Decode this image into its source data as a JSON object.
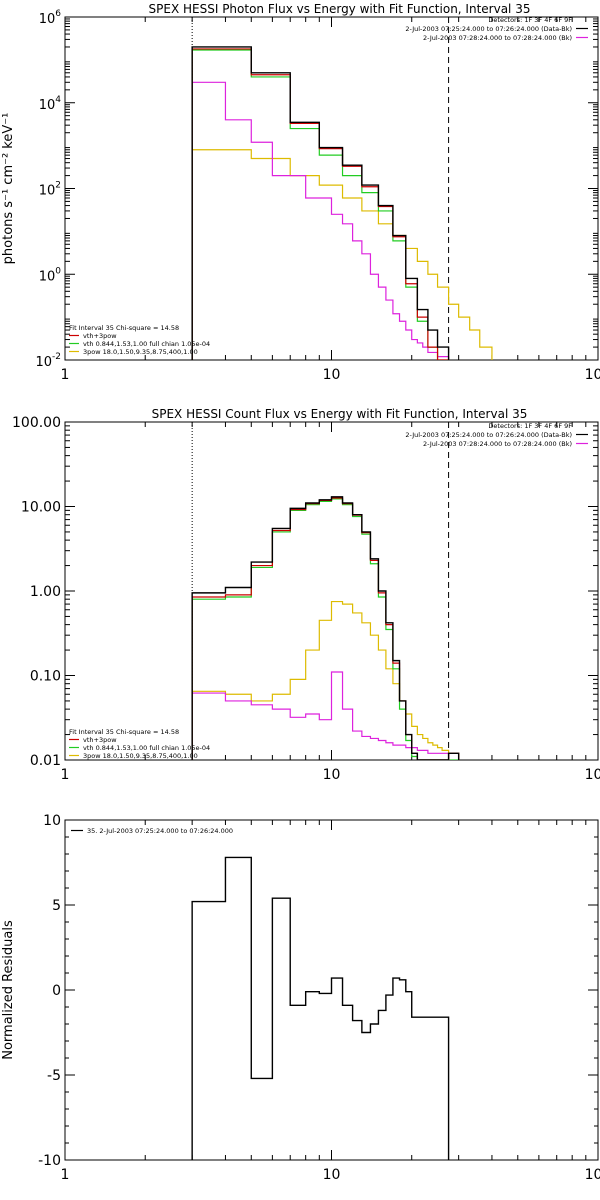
{
  "chart_data": [
    {
      "type": "line",
      "title": "SPEX HESSI Photon Flux vs Energy with Fit Function, Interval 35",
      "ylabel": "photons s⁻¹ cm⁻² keV⁻¹",
      "xlabel": "",
      "xscale": "log",
      "yscale": "log",
      "xlim": [
        1,
        100
      ],
      "ylim": [
        0.01,
        1000000
      ],
      "x_ticks": [
        {
          "v": 1,
          "label": "1"
        },
        {
          "v": 10,
          "label": "10"
        },
        {
          "v": 100,
          "label": "100"
        }
      ],
      "y_ticks": [
        {
          "v": 0.01,
          "base": "10",
          "exp": "-2"
        },
        {
          "v": 1,
          "base": "10",
          "exp": "0"
        },
        {
          "v": 100,
          "base": "10",
          "exp": "2"
        },
        {
          "v": 10000,
          "base": "10",
          "exp": "4"
        },
        {
          "v": 1000000,
          "base": "10",
          "exp": "6"
        }
      ],
      "legend_top": [
        "Detectors: 1F 3F 4F 6F 9F",
        "2-Jul-2003 07:25:24.000 to 07:26:24.000 (Data-Bk)",
        "2-Jul-2003 07:28:24.000 to 07:28:24.000 (Bk)"
      ],
      "legend_bottom": [
        "Fit Interval 35   Chi-square = 14.58",
        "vth+3pow",
        "vth 0.844,1.53,1.00  full chian 1.05e-04",
        "3pow 18.0,1.50,9.35,8.75,400,1.00"
      ],
      "colors": {
        "data": "#000000",
        "model": "#cc0000",
        "vth": "#22cc22",
        "pow": "#ddbb00",
        "bk": "#dd22dd"
      },
      "fit_range": [
        3,
        27.5
      ],
      "energy_edges": [
        3,
        4,
        5,
        6,
        7,
        8,
        9,
        10,
        11,
        12,
        13,
        14,
        15,
        16,
        17,
        18,
        19,
        20,
        21,
        22,
        23,
        24,
        25,
        26,
        27.5,
        30,
        33,
        36,
        40
      ],
      "series": [
        {
          "role": "data",
          "values": [
            200000,
            200000,
            50000,
            50000,
            3500,
            3500,
            900,
            900,
            350,
            350,
            120,
            120,
            40,
            40,
            8,
            8,
            0.8,
            0.8,
            0.15,
            0.15,
            0.05,
            0.05,
            0.02,
            0.02
          ]
        },
        {
          "role": "model",
          "values": [
            180000,
            180000,
            45000,
            45000,
            3300,
            3300,
            850,
            850,
            330,
            330,
            110,
            110,
            38,
            38,
            7.5,
            7.5,
            0.6,
            0.6,
            0.1,
            0.1,
            0.02,
            0.02,
            0.01,
            0.01
          ]
        },
        {
          "role": "vth",
          "values": [
            170000,
            170000,
            40000,
            40000,
            2500,
            2500,
            600,
            600,
            200,
            200,
            80,
            80,
            30,
            30,
            6,
            6,
            0.5,
            0.5,
            0.08,
            0.08,
            0.02,
            0.02,
            0.01,
            0.01
          ]
        },
        {
          "role": "pow",
          "values": [
            800,
            800,
            500,
            500,
            200,
            200,
            120,
            120,
            60,
            60,
            30,
            30,
            15,
            15,
            8,
            8,
            4,
            4,
            2,
            2,
            1,
            1,
            0.5,
            0.5,
            0.2,
            0.1,
            0.05,
            0.02
          ]
        },
        {
          "role": "bk",
          "values": [
            30000,
            4000,
            1200,
            200,
            200,
            60,
            60,
            25,
            15,
            6,
            3,
            1,
            0.5,
            0.25,
            0.12,
            0.08,
            0.05,
            0.03,
            0.025,
            0.02,
            0.015,
            0.015,
            0.012,
            0.012
          ]
        }
      ]
    },
    {
      "type": "line",
      "title": "SPEX HESSI Count Flux vs Energy with Fit Function, Interval 35",
      "ylabel": "",
      "xlabel": "",
      "xscale": "log",
      "yscale": "log",
      "xlim": [
        1,
        100
      ],
      "ylim": [
        0.01,
        100
      ],
      "x_ticks": [
        {
          "v": 1,
          "label": "1"
        },
        {
          "v": 10,
          "label": "10"
        },
        {
          "v": 100,
          "label": "100"
        }
      ],
      "y_ticks": [
        {
          "v": 0.01,
          "label": "0.01"
        },
        {
          "v": 0.1,
          "label": "0.10"
        },
        {
          "v": 1,
          "label": "1.00"
        },
        {
          "v": 10,
          "label": "10.00"
        },
        {
          "v": 100,
          "label": "100.00"
        }
      ],
      "legend_top": [
        "Detectors: 1F 3F 4F 6F 9F",
        "2-Jul-2003 07:25:24.000 to 07:26:24.000 (Data-Bk)",
        "2-Jul-2003 07:28:24.000 to 07:28:24.000 (Bk)"
      ],
      "legend_bottom": [
        "Fit Interval 35   Chi-square = 14.58",
        "vth+3pow",
        "vth 0.844,1.53,1.00  full chian 1.05e-04",
        "3pow 18.0,1.50,9.35,8.75,400,1.00"
      ],
      "colors": {
        "data": "#000000",
        "model": "#cc0000",
        "vth": "#22cc22",
        "pow": "#ddbb00",
        "bk": "#dd22dd"
      },
      "fit_range": [
        3,
        27.5
      ],
      "energy_edges": [
        3,
        4,
        5,
        6,
        7,
        8,
        9,
        10,
        11,
        12,
        13,
        14,
        15,
        16,
        17,
        18,
        19,
        20,
        21,
        22,
        23,
        24,
        25,
        26,
        27.5,
        30
      ],
      "series": [
        {
          "role": "data",
          "values": [
            0.95,
            1.1,
            2.2,
            5.5,
            9.5,
            11,
            12,
            13,
            11,
            8,
            5,
            2.4,
            1.0,
            0.42,
            0.15,
            0.05,
            0.02,
            0.012,
            0.01,
            0.01,
            0.01,
            0.01,
            0.01,
            0.01,
            0.012
          ]
        },
        {
          "role": "model",
          "values": [
            0.85,
            0.9,
            2.0,
            5.2,
            9.2,
            10.8,
            11.8,
            12.6,
            10.8,
            7.9,
            4.9,
            2.3,
            0.95,
            0.4,
            0.14,
            0.05,
            0.02,
            0.012,
            0.01,
            0.01,
            0.01,
            0.01,
            0.01,
            0.01,
            0.012
          ]
        },
        {
          "role": "vth",
          "values": [
            0.8,
            0.85,
            1.9,
            5.0,
            9.0,
            10.5,
            11.5,
            12.3,
            10.5,
            7.6,
            4.7,
            2.1,
            0.85,
            0.35,
            0.12,
            0.04,
            0.017,
            0.011,
            0.01,
            0.01,
            0.01,
            0.01,
            0.01,
            0.01,
            0.01
          ]
        },
        {
          "role": "pow",
          "values": [
            0.065,
            0.06,
            0.05,
            0.06,
            0.09,
            0.2,
            0.45,
            0.75,
            0.7,
            0.55,
            0.42,
            0.3,
            0.2,
            0.12,
            0.08,
            0.05,
            0.035,
            0.025,
            0.02,
            0.018,
            0.016,
            0.015,
            0.014,
            0.013,
            0.012
          ]
        },
        {
          "role": "bk",
          "values": [
            0.062,
            0.05,
            0.045,
            0.04,
            0.032,
            0.035,
            0.03,
            0.11,
            0.04,
            0.022,
            0.019,
            0.018,
            0.017,
            0.016,
            0.015,
            0.015,
            0.014,
            0.014,
            0.013,
            0.013,
            0.012,
            0.012,
            0.012,
            0.012
          ]
        }
      ]
    },
    {
      "type": "line",
      "title": "",
      "ylabel": "Normalized Residuals",
      "xlabel": "",
      "xscale": "log",
      "yscale": "linear",
      "xlim": [
        1,
        100
      ],
      "ylim": [
        -10,
        10
      ],
      "x_ticks": [
        {
          "v": 1,
          "label": "1"
        },
        {
          "v": 10,
          "label": "10"
        },
        {
          "v": 100,
          "label": "100"
        }
      ],
      "y_ticks": [
        {
          "v": -10,
          "label": "-10"
        },
        {
          "v": -5,
          "label": "-5"
        },
        {
          "v": 0,
          "label": "0"
        },
        {
          "v": 5,
          "label": "5"
        },
        {
          "v": 10,
          "label": "10"
        }
      ],
      "legend": [
        "35.  2-Jul-2003 07:25:24.000 to 07:26:24.000"
      ],
      "colors": {
        "data": "#000000"
      },
      "energy_edges": [
        3,
        4,
        5,
        6,
        7,
        8,
        9,
        10,
        11,
        12,
        13,
        14,
        15,
        16,
        17,
        18,
        19,
        20,
        21,
        22,
        23,
        24,
        25,
        26,
        27.5
      ],
      "series": [
        {
          "role": "data",
          "values": [
            5.2,
            7.8,
            -5.2,
            5.4,
            -0.9,
            -0.1,
            -0.2,
            0.7,
            -0.9,
            -1.8,
            -2.5,
            -2.0,
            -1.2,
            -0.3,
            0.7,
            0.6,
            -0.1,
            -1.6,
            -1.6,
            -1.6,
            -1.6,
            -1.6,
            -1.6,
            -1.6
          ]
        }
      ]
    }
  ]
}
